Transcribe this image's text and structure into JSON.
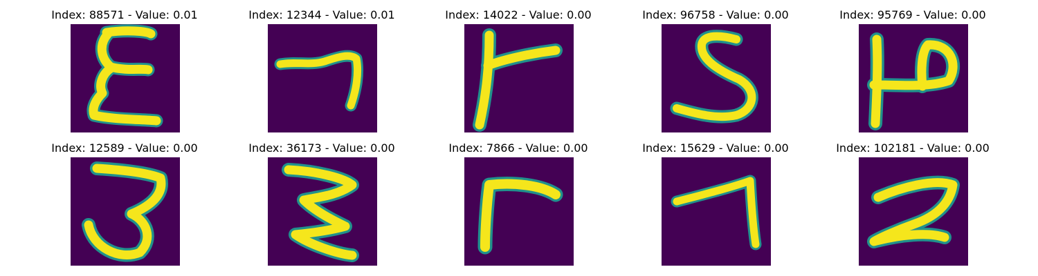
{
  "panels": [
    {
      "title": "Index: 88571 - Value: 0.01",
      "glyph": "rotated-M / sigma-like handwritten character",
      "glyph_icon": "sigma-glyph-icon"
    },
    {
      "title": "Index: 12344 - Value: 0.01",
      "glyph": "seven-like handwritten stroke",
      "glyph_icon": "seven-glyph-icon"
    },
    {
      "title": "Index: 14022 - Value: 0.00",
      "glyph": "r / gamma-like handwritten stroke",
      "glyph_icon": "r-glyph-icon"
    },
    {
      "title": "Index: 96758 - Value: 0.00",
      "glyph": "S / 5-like handwritten stroke",
      "glyph_icon": "s-glyph-icon"
    },
    {
      "title": "Index: 95769 - Value: 0.00",
      "glyph": "P / 12-like handwritten stroke",
      "glyph_icon": "p-glyph-icon"
    },
    {
      "title": "Index: 12589 - Value: 0.00",
      "glyph": "3-like handwritten stroke",
      "glyph_icon": "three-glyph-icon"
    },
    {
      "title": "Index: 36173 - Value: 0.00",
      "glyph": "3 / zigzag-like handwritten stroke",
      "glyph_icon": "three-zigzag-glyph-icon"
    },
    {
      "title": "Index: 7866 - Value: 0.00",
      "glyph": "r / gamma-like handwritten stroke",
      "glyph_icon": "r-glyph-icon"
    },
    {
      "title": "Index: 15629 - Value: 0.00",
      "glyph": "seven-like handwritten stroke",
      "glyph_icon": "seven-glyph-icon"
    },
    {
      "title": "Index: 102181 - Value: 0.00",
      "glyph": "2-like handwritten stroke",
      "glyph_icon": "two-glyph-icon"
    }
  ],
  "colors": {
    "background": "#440154",
    "stroke": "#f5e61c",
    "edge": "#21918c"
  }
}
